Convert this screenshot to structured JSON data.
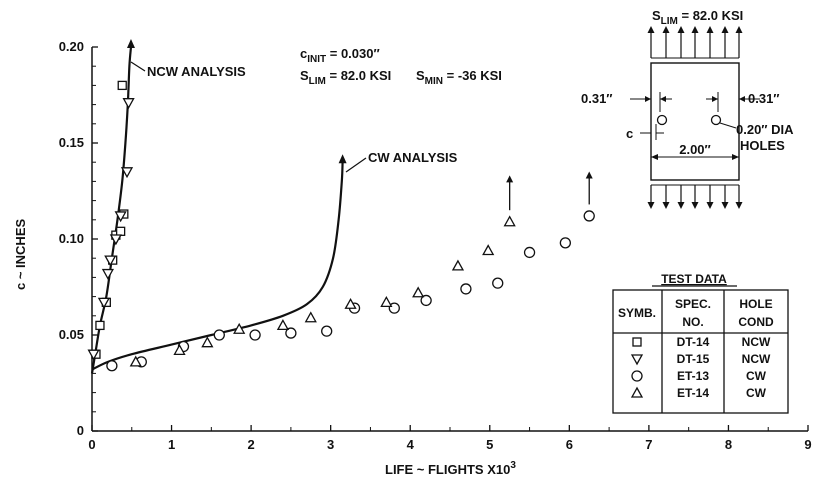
{
  "chart_data": {
    "type": "scatter",
    "xlabel": "LIFE ~ FLIGHTS X10",
    "xlabel_sup": "3",
    "ylabel": "c ~ INCHES",
    "xlim": [
      0,
      9
    ],
    "ylim": [
      0,
      0.2
    ],
    "x_ticks": [
      "0",
      "1",
      "2",
      "3",
      "4",
      "5",
      "6",
      "7",
      "8",
      "9"
    ],
    "y_ticks": [
      "0",
      "0.05",
      "0.10",
      "0.15",
      "0.20"
    ],
    "grid": false,
    "params": {
      "c_init": {
        "main": "c",
        "sub": "INIT",
        "rest": " = 0.030″"
      },
      "s_lim": {
        "main": "S",
        "sub": "LIM",
        "rest": " = 82.0 KSI"
      },
      "s_min": {
        "main": "S",
        "sub": "MIN",
        "rest": " = -36 KSI"
      }
    },
    "curves": [
      {
        "name": "NCW ANALYSIS",
        "points": [
          [
            0,
            0.03
          ],
          [
            0.04,
            0.04
          ],
          [
            0.1,
            0.055
          ],
          [
            0.18,
            0.07
          ],
          [
            0.25,
            0.09
          ],
          [
            0.32,
            0.11
          ],
          [
            0.38,
            0.13
          ],
          [
            0.42,
            0.15
          ],
          [
            0.45,
            0.17
          ],
          [
            0.47,
            0.19
          ],
          [
            0.49,
            0.2
          ]
        ]
      },
      {
        "name": "CW ANALYSIS",
        "points": [
          [
            0,
            0.032
          ],
          [
            0.2,
            0.036
          ],
          [
            0.5,
            0.04
          ],
          [
            1,
            0.045
          ],
          [
            1.5,
            0.05
          ],
          [
            2,
            0.055
          ],
          [
            2.4,
            0.06
          ],
          [
            2.7,
            0.066
          ],
          [
            2.9,
            0.075
          ],
          [
            3.03,
            0.09
          ],
          [
            3.1,
            0.11
          ],
          [
            3.14,
            0.13
          ],
          [
            3.15,
            0.14
          ]
        ]
      }
    ],
    "series": [
      {
        "symbol": "square",
        "spec": "DT-14",
        "cond": "NCW",
        "points": [
          [
            0.05,
            0.04
          ],
          [
            0.1,
            0.055
          ],
          [
            0.18,
            0.067
          ],
          [
            0.26,
            0.089
          ],
          [
            0.3,
            0.102
          ],
          [
            0.36,
            0.104
          ],
          [
            0.4,
            0.113
          ],
          [
            0.38,
            0.18
          ]
        ]
      },
      {
        "symbol": "triangle-down",
        "spec": "DT-15",
        "cond": "NCW",
        "points": [
          [
            0.02,
            0.04
          ],
          [
            0.15,
            0.067
          ],
          [
            0.2,
            0.082
          ],
          [
            0.23,
            0.089
          ],
          [
            0.3,
            0.1
          ],
          [
            0.36,
            0.112
          ],
          [
            0.44,
            0.135
          ],
          [
            0.46,
            0.171
          ]
        ]
      },
      {
        "symbol": "circle",
        "spec": "ET-13",
        "cond": "CW",
        "points": [
          [
            0.25,
            0.034
          ],
          [
            0.62,
            0.036
          ],
          [
            1.15,
            0.044
          ],
          [
            1.6,
            0.05
          ],
          [
            2.05,
            0.05
          ],
          [
            2.5,
            0.051
          ],
          [
            2.95,
            0.052
          ],
          [
            3.3,
            0.064
          ],
          [
            3.8,
            0.064
          ],
          [
            4.2,
            0.068
          ],
          [
            4.7,
            0.074
          ],
          [
            5.1,
            0.077
          ],
          [
            5.5,
            0.093
          ],
          [
            5.95,
            0.098
          ],
          [
            6.25,
            0.112
          ]
        ]
      },
      {
        "symbol": "triangle-up",
        "spec": "ET-14",
        "cond": "CW",
        "points": [
          [
            0.55,
            0.036
          ],
          [
            1.1,
            0.042
          ],
          [
            1.45,
            0.046
          ],
          [
            1.85,
            0.053
          ],
          [
            2.4,
            0.055
          ],
          [
            2.75,
            0.059
          ],
          [
            3.25,
            0.066
          ],
          [
            3.7,
            0.067
          ],
          [
            4.1,
            0.072
          ],
          [
            4.6,
            0.086
          ],
          [
            4.98,
            0.094
          ],
          [
            5.25,
            0.109
          ]
        ]
      }
    ],
    "runout_arrows": [
      {
        "x": 5.25,
        "y_from": 0.115,
        "y_to": 0.13
      },
      {
        "x": 6.25,
        "y_from": 0.118,
        "y_to": 0.132
      }
    ],
    "legend": {
      "title": "TEST DATA",
      "headers": {
        "symb": "SYMB.",
        "spec_1": "SPEC.",
        "spec_2": "NO.",
        "hole_1": "HOLE",
        "hole_2": "COND"
      },
      "placement": "bottom-right"
    },
    "specimen": {
      "s_lim_label": {
        "main": "S",
        "sub": "LIM",
        "rest": " = 82.0 KSI"
      },
      "edge_left": "0.31″",
      "edge_right": "0.31″",
      "hole_label_1": "0.20″ DIA",
      "hole_label_2": "HOLES",
      "crack_label": "c",
      "width_label": "2.00″"
    }
  }
}
